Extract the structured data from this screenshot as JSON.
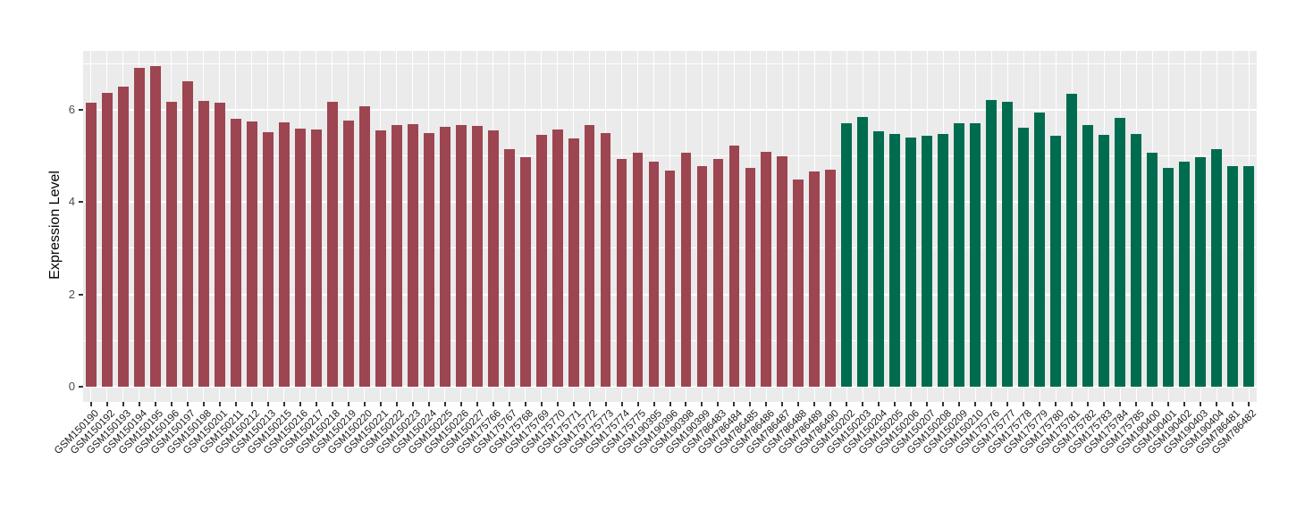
{
  "chart_data": {
    "type": "bar",
    "title": "",
    "xlabel": "",
    "ylabel": "Expression Level",
    "ylim": [
      0,
      7.27
    ],
    "yticks": [
      0,
      2,
      4,
      6
    ],
    "minor_yticks": [
      1,
      3,
      5,
      7
    ],
    "grid": "on",
    "legend": "none",
    "panel_background": "#EBEBEB",
    "grid_color": "#FFFFFF",
    "categories": [
      "GSM150190",
      "GSM150192",
      "GSM150193",
      "GSM150194",
      "GSM150195",
      "GSM150196",
      "GSM150197",
      "GSM150198",
      "GSM150201",
      "GSM150211",
      "GSM150212",
      "GSM150213",
      "GSM150215",
      "GSM150216",
      "GSM150217",
      "GSM150218",
      "GSM150219",
      "GSM150220",
      "GSM150221",
      "GSM150222",
      "GSM150223",
      "GSM150224",
      "GSM150225",
      "GSM150226",
      "GSM150227",
      "GSM175766",
      "GSM175767",
      "GSM175768",
      "GSM175769",
      "GSM175770",
      "GSM175771",
      "GSM175772",
      "GSM175773",
      "GSM175774",
      "GSM175775",
      "GSM190395",
      "GSM190396",
      "GSM190398",
      "GSM190399",
      "GSM786483",
      "GSM786484",
      "GSM786485",
      "GSM786486",
      "GSM786487",
      "GSM786488",
      "GSM786489",
      "GSM786490",
      "GSM150202",
      "GSM150203",
      "GSM150204",
      "GSM150205",
      "GSM150206",
      "GSM150207",
      "GSM150208",
      "GSM150209",
      "GSM150210",
      "GSM175776",
      "GSM175777",
      "GSM175778",
      "GSM175779",
      "GSM175780",
      "GSM175781",
      "GSM175782",
      "GSM175783",
      "GSM175784",
      "GSM175785",
      "GSM190400",
      "GSM190401",
      "GSM190402",
      "GSM190403",
      "GSM190404",
      "GSM786481",
      "GSM786482"
    ],
    "values": [
      6.16,
      6.36,
      6.49,
      6.91,
      6.94,
      6.17,
      6.61,
      6.19,
      6.16,
      5.8,
      5.74,
      5.51,
      5.73,
      5.59,
      5.58,
      6.18,
      5.76,
      6.08,
      5.55,
      5.67,
      5.68,
      5.5,
      5.62,
      5.66,
      5.65,
      5.56,
      5.14,
      4.97,
      5.46,
      5.57,
      5.37,
      5.67,
      5.49,
      4.94,
      5.07,
      4.88,
      4.68,
      5.06,
      4.78,
      4.93,
      5.22,
      4.74,
      5.08,
      5.0,
      4.49,
      4.66,
      4.71,
      5.7,
      5.84,
      5.53,
      5.47,
      5.4,
      5.43,
      5.48,
      5.71,
      5.71,
      6.2,
      6.17,
      5.61,
      5.93,
      5.44,
      6.34,
      5.67,
      5.46,
      5.82,
      5.47,
      5.06,
      4.73,
      4.87,
      4.97,
      5.14,
      4.77,
      4.77
    ],
    "color_groups": [
      {
        "color": "#9D4551",
        "start_index": 0,
        "end_index": 46
      },
      {
        "color": "#006C4F",
        "start_index": 47,
        "end_index": 72
      }
    ]
  }
}
